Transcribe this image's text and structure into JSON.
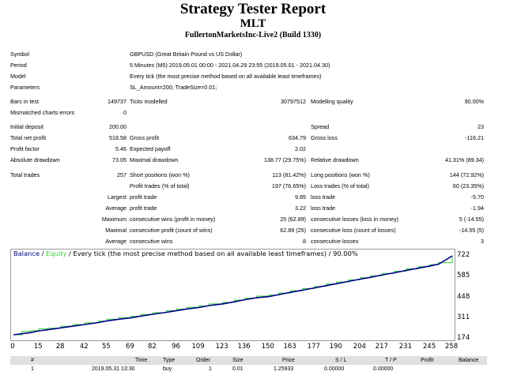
{
  "report": {
    "title": "Strategy Tester Report",
    "subtitle": "MLT",
    "server": "FullertonMarketsInc-Live2 (Build 1330)"
  },
  "settings": [
    {
      "label": "Symbol",
      "value": "GBPUSD (Great Britain Pound vs US Dollar)"
    },
    {
      "label": "Period",
      "value": "5 Minutes (M5) 2019.05.01 00:00 - 2021.04.29 23:55 (2019.05.01 - 2021.04.30)"
    },
    {
      "label": "Model",
      "value": "Every tick (the most precise method based on all available least timeframes)"
    },
    {
      "label": "Parameters",
      "value": "SL_Amount=200; TradeSize=0.01;"
    }
  ],
  "quality": {
    "bars_label": "Bars in test",
    "bars_value": "149737",
    "ticks_label": "Ticks modelled",
    "ticks_value": "30797512",
    "modelling_label": "Modelling quality",
    "modelling_value": "90.00%",
    "mismatch_label": "Mismatched charts errors",
    "mismatch_value": "0"
  },
  "results": {
    "initial_deposit_label": "Initial deposit",
    "initial_deposit_value": "200.00",
    "spread_label": "Spread",
    "spread_value": "23",
    "total_net_profit_label": "Total net profit",
    "total_net_profit_value": "518.58",
    "gross_profit_label": "Gross profit",
    "gross_profit_value": "634.79",
    "gross_loss_label": "Gross loss",
    "gross_loss_value": "-116.21",
    "profit_factor_label": "Profit factor",
    "profit_factor_value": "5.46",
    "expected_payoff_label": "Expected payoff",
    "expected_payoff_value": "2.02",
    "abs_drawdown_label": "Absolute drawdown",
    "abs_drawdown_value": "73.05",
    "max_drawdown_label": "Maximal drawdown",
    "max_drawdown_value": "138.77 (29.75%)",
    "rel_drawdown_label": "Relative drawdown",
    "rel_drawdown_value": "41.31% (89.34)"
  },
  "trades": {
    "total_trades_label": "Total trades",
    "total_trades_value": "257",
    "short_label": "Short positions (won %)",
    "short_value": "113 (81.42%)",
    "long_label": "Long positions (won %)",
    "long_value": "144 (72.92%)",
    "profit_trades_label": "Profit trades (% of total)",
    "profit_trades_value": "197 (76.65%)",
    "loss_trades_label": "Loss trades (% of total)",
    "loss_trades_value": "60 (23.35%)",
    "largest_label": "Largest",
    "largest_profit_label": "profit trade",
    "largest_profit_value": "9.85",
    "largest_loss_label": "loss trade",
    "largest_loss_value": "-5.70",
    "average_label": "Average",
    "average_profit_label": "profit trade",
    "average_profit_value": "3.22",
    "average_loss_label": "loss trade",
    "average_loss_value": "-1.94",
    "maximum_label": "Maximum",
    "max_wins_label": "consecutive wins (profit in money)",
    "max_wins_value": "25 (62.89)",
    "max_losses_label": "consecutive losses (loss in money)",
    "max_losses_value": "5 (-14.55)",
    "maximal_label": "Maximal",
    "maximal_profit_label": "consecutive profit (count of wins)",
    "maximal_profit_value": "62.89 (25)",
    "maximal_loss_label": "consecutive loss (count of losses)",
    "maximal_loss_value": "-14.55 (5)",
    "avg_label": "Average",
    "avg_wins_label": "consecutive wins",
    "avg_wins_value": "8",
    "avg_losses_label": "consecutive losses",
    "avg_losses_value": "3"
  },
  "chart_data": {
    "type": "line",
    "legend": {
      "balance": "Balance",
      "separator": " / ",
      "equity": "Equity",
      "rest": " / Every tick (the most precise method based on all available least timeframes) / 90.00%"
    },
    "x_ticks": [
      "0",
      "15",
      "28",
      "42",
      "55",
      "69",
      "82",
      "96",
      "109",
      "123",
      "136",
      "150",
      "163",
      "177",
      "190",
      "204",
      "217",
      "231",
      "245",
      "258"
    ],
    "y_ticks": [
      "722",
      "585",
      "448",
      "311",
      "174"
    ],
    "xlim": [
      0,
      258
    ],
    "ylim": [
      174,
      722
    ],
    "grid": false,
    "series": [
      {
        "name": "Balance",
        "color": "#00008b",
        "x": [
          0,
          10,
          15,
          20,
          28,
          35,
          42,
          50,
          55,
          62,
          69,
          75,
          82,
          90,
          96,
          102,
          109,
          115,
          123,
          130,
          136,
          143,
          150,
          156,
          163,
          170,
          177,
          184,
          190,
          197,
          204,
          210,
          217,
          224,
          231,
          238,
          245,
          250,
          258
        ],
        "values": [
          200,
          214,
          226,
          233,
          246,
          257,
          268,
          281,
          292,
          303,
          312,
          324,
          336,
          349,
          360,
          371,
          380,
          393,
          404,
          418,
          432,
          445,
          452,
          466,
          481,
          495,
          510,
          525,
          538,
          553,
          568,
          580,
          596,
          610,
          626,
          640,
          655,
          667,
          721
        ]
      },
      {
        "name": "Equity",
        "color": "#32cd32",
        "x": [
          0,
          5,
          10,
          15,
          20,
          28,
          35,
          42,
          50,
          55,
          62,
          69,
          75,
          82,
          90,
          96,
          102,
          109,
          115,
          123,
          130,
          136,
          143,
          150,
          156,
          163,
          170,
          177,
          184,
          190,
          197,
          204,
          210,
          217,
          224,
          231,
          238,
          245,
          250,
          258
        ],
        "values": [
          200,
          222,
          228,
          240,
          244,
          256,
          268,
          279,
          291,
          303,
          314,
          322,
          335,
          346,
          360,
          370,
          382,
          391,
          404,
          414,
          429,
          442,
          456,
          462,
          476,
          491,
          506,
          520,
          536,
          549,
          563,
          578,
          590,
          606,
          620,
          636,
          650,
          664,
          677,
          724
        ]
      }
    ]
  },
  "orders": {
    "columns": [
      "#",
      "Time",
      "Type",
      "Order",
      "Size",
      "Price",
      "S / L",
      "T / P",
      "Profit",
      "Balance"
    ],
    "rows": [
      [
        "1",
        "2019.05.31 13:30",
        "buy",
        "1",
        "0.01",
        "1.25933",
        "0.00000",
        "0.00000",
        "",
        ""
      ]
    ]
  }
}
